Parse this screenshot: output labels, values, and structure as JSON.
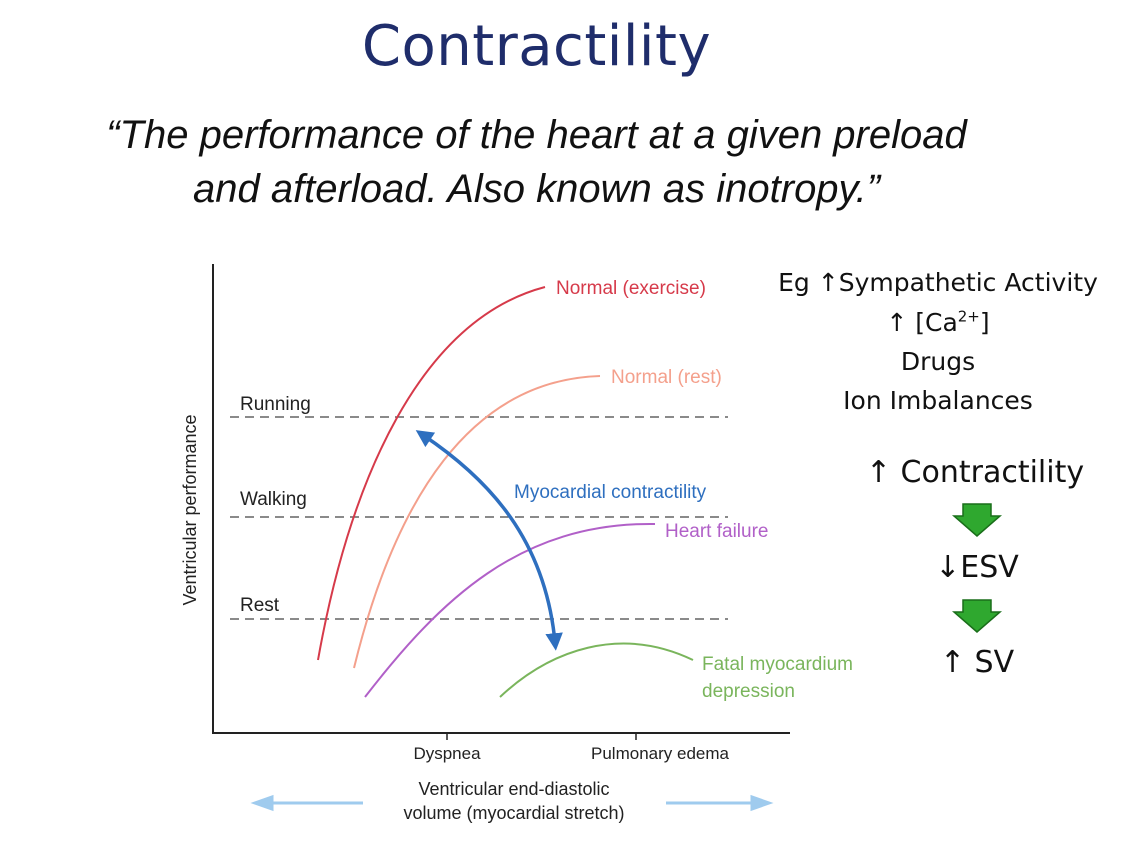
{
  "slide": {
    "title": "Contractility",
    "quote_line1": "“The performance of the heart at a given preload",
    "quote_line2": "and afterload. Also known as inotropy.”"
  },
  "examples": {
    "line1_prefix": "Eg",
    "line1_text": "Sympathetic Activity",
    "line2_ca": "[Ca",
    "line2_sup": "2+",
    "line2_close": "]",
    "line3": "Drugs",
    "line4": "Ion Imbalances"
  },
  "cascade": {
    "step1": "Contractility",
    "step2": "ESV",
    "step3": "SV",
    "arrow_color": "#2fa82f"
  },
  "diagram": {
    "y_axis_label": "Ventricular performance",
    "x_axis_label_line1": "Ventricular end-diastolic",
    "x_axis_label_line2": "volume (myocardial stretch)",
    "x_ticks": [
      "Dyspnea",
      "Pulmonary edema"
    ],
    "levels": [
      "Running",
      "Walking",
      "Rest"
    ],
    "curves": [
      {
        "label": "Normal (exercise)",
        "color": "#d63a4a"
      },
      {
        "label": "Normal (rest)",
        "color": "#f4a08c"
      },
      {
        "label": "Heart failure",
        "color": "#b160c8"
      },
      {
        "label_line1": "Fatal myocardium",
        "label_line2": "depression",
        "color": "#7ab55c"
      }
    ],
    "contractility_arrow_label": "Myocardial contractility",
    "contractility_arrow_color": "#2e6fbf",
    "stretch_arrow_color": "#9fcbee"
  }
}
